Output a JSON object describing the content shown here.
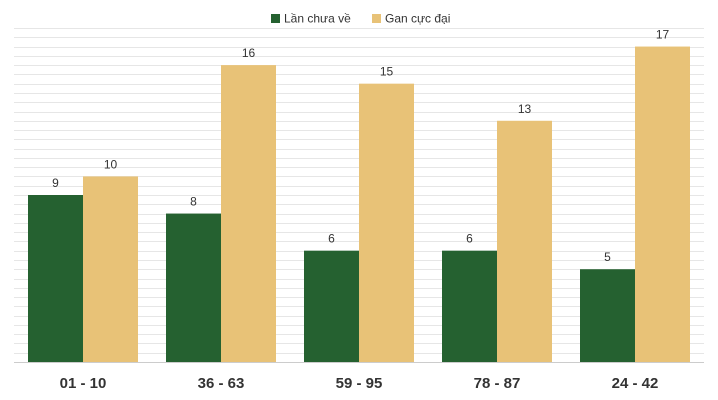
{
  "chart_data": {
    "type": "bar",
    "categories": [
      "01 - 10",
      "36 - 63",
      "59 - 95",
      "78 - 87",
      "24 - 42"
    ],
    "series": [
      {
        "name": "Lần chưa về",
        "values": [
          9,
          8,
          6,
          6,
          5
        ],
        "color": "#256130"
      },
      {
        "name": "Gan cực đại",
        "values": [
          10,
          16,
          15,
          13,
          17
        ],
        "color": "#e8c277"
      }
    ],
    "ylim": [
      0,
      18
    ],
    "grid": true,
    "legend": "top-center",
    "show_value_labels": true
  }
}
